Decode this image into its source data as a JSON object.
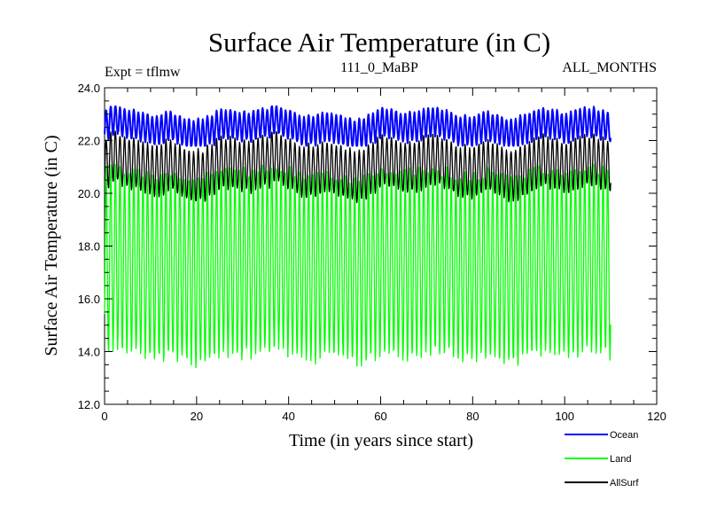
{
  "chart_data": {
    "type": "line",
    "title": "Surface Air Temperature (in C)",
    "subtitle": "111_0_MaBP",
    "expt_label": "Expt = tflmw",
    "months_label": "ALL_MONTHS",
    "xlabel": "Time (in years since start)",
    "ylabel": "Surface Air Temperature (in C)",
    "xlim": [
      0,
      120
    ],
    "ylim": [
      12,
      24
    ],
    "x_ticks": [
      0,
      20,
      40,
      60,
      80,
      100,
      120
    ],
    "y_ticks": [
      12,
      14,
      16,
      18,
      20,
      22,
      24
    ],
    "x_tick_labels": [
      "0",
      "20",
      "40",
      "60",
      "80",
      "100",
      "120"
    ],
    "y_tick_labels": [
      "12.0",
      "14.0",
      "16.0",
      "18.0",
      "20.0",
      "22.0",
      "24.0"
    ],
    "legend_position": "bottom-right, outside plot",
    "sampling": "monthly",
    "n_years": 110,
    "series": [
      {
        "name": "Ocean",
        "color": "#0000ff",
        "mean": 22.5,
        "seasonal_amplitude": 0.55,
        "annual_variability": 0.3,
        "min": 21.8,
        "max": 23.3
      },
      {
        "name": "Land",
        "color": "#00ff00",
        "mean": 17.3,
        "seasonal_amplitude": 3.45,
        "annual_variability": 0.3,
        "min": 13.2,
        "max": 21.1
      },
      {
        "name": "AllSurf",
        "color": "#000000",
        "mean": 21.0,
        "seasonal_amplitude": 0.95,
        "annual_variability": 0.3,
        "min": 19.6,
        "max": 22.4
      }
    ]
  }
}
